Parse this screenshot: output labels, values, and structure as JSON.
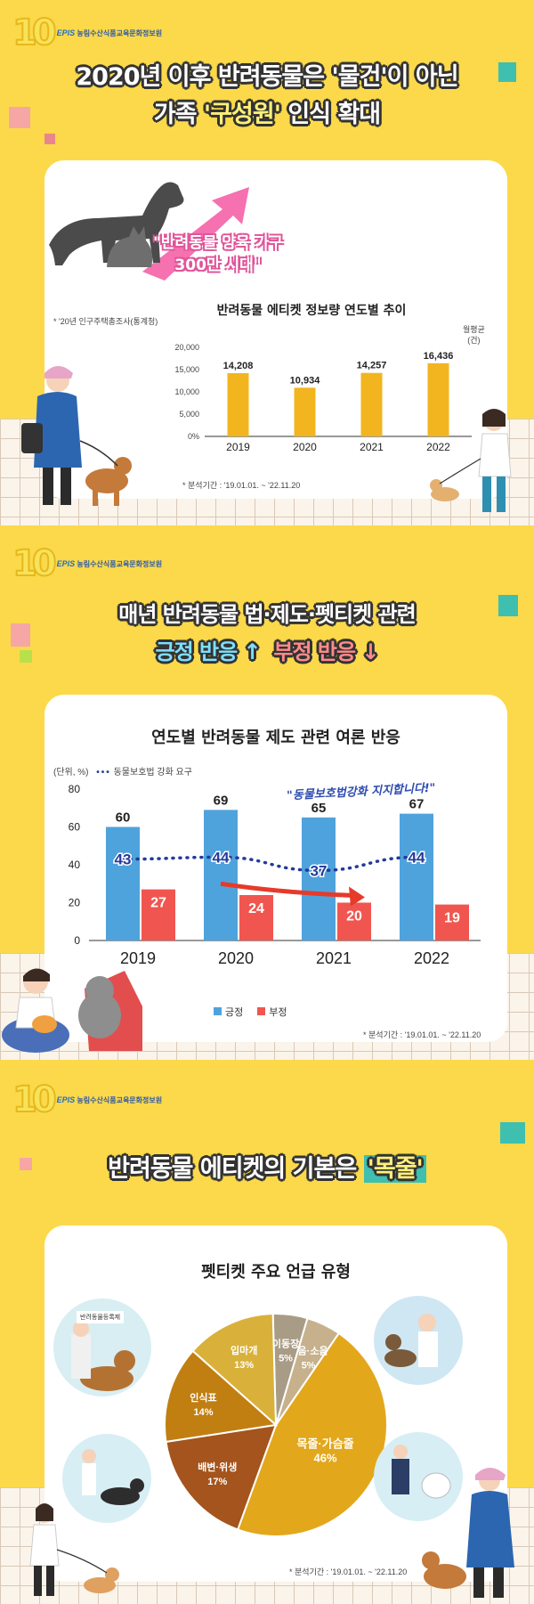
{
  "org": {
    "mark": "10",
    "brand": "EPIS",
    "name": "농림수산식품교육문화정보원"
  },
  "section1": {
    "headline_line1": "2020년 이후 반려동물은 '물건'이 아닌",
    "headline_line2_a": "가족 ",
    "headline_line2_b": "'구성원'",
    "headline_line2_c": " 인식 확대",
    "callout_line1": "\"반려동물 양육 가구",
    "callout_line2": "300만 시대\"",
    "source_note": "* '20년 인구주택총조사(통계청)",
    "chart_title": "반려동물 에티켓 정보량 연도별 추이",
    "unit_label_1": "월평균",
    "unit_label_2": "(건)",
    "period_note": "* 분석기간 : '19.01.01. ~ '22.11.20"
  },
  "section2": {
    "headline_line1": "매년 반려동물 법·제도·펫티켓 관련",
    "headline_pos": "긍정 반응 ↑",
    "headline_neg": "부정 반응 ↓",
    "chart_title": "연도별 반려동물 제도 관련 여론 반응",
    "unit_label": "(단위, %)",
    "line_legend": "동물보호법 강화 요구",
    "callout": "\"동물보호법강화 지지합니다!\"",
    "legend_pos": "긍정",
    "legend_neg": "부정",
    "period_note": "* 분석기간 : '19.01.01. ~ '22.11.20"
  },
  "section3": {
    "headline_a": "반려동물 에티켓의 기본은 ",
    "headline_b": "'목줄'",
    "chart_title": "펫티켓 주요 언급 유형",
    "sign_text": "반려동물등록제",
    "period_note": "* 분석기간 : '19.01.01. ~ '22.11.20"
  },
  "colors": {
    "background": "#fcd94a",
    "bar_gold": "#f2b51f",
    "positive": "#4fa3dc",
    "negative": "#f0564f",
    "line": "#233a9c",
    "pink_arrow": "#f571b0"
  },
  "chart_data": [
    {
      "type": "bar",
      "title": "반려동물 에티켓 정보량 연도별 추이",
      "categories": [
        "2019",
        "2020",
        "2021",
        "2022"
      ],
      "values": [
        14208,
        10934,
        14257,
        16436
      ],
      "data_labels": [
        "14,208",
        "10,934",
        "14,257",
        "16,436"
      ],
      "yticks": [
        "0%",
        "5,000",
        "10,000",
        "15,000",
        "20,000"
      ],
      "ylabel": "월평균 (건)",
      "ylim": [
        0,
        20000
      ],
      "grid": false
    },
    {
      "type": "bar",
      "title": "연도별 반려동물 제도 관련 여론 반응",
      "categories": [
        "2019",
        "2020",
        "2021",
        "2022"
      ],
      "yticks": [
        "0",
        "20",
        "40",
        "60",
        "80"
      ],
      "ylim": [
        0,
        80
      ],
      "ylabel": "(단위, %)",
      "series": [
        {
          "name": "긍정",
          "type": "bar",
          "values": [
            60,
            69,
            65,
            67
          ]
        },
        {
          "name": "부정",
          "type": "bar",
          "values": [
            27,
            24,
            20,
            19
          ]
        },
        {
          "name": "동물보호법 강화 요구",
          "type": "line",
          "style": "dotted",
          "values": [
            43,
            44,
            37,
            44
          ]
        }
      ],
      "legend": "bottom"
    },
    {
      "type": "pie",
      "title": "펫티켓 주요 언급 유형",
      "slices": [
        {
          "label": "목줄·가슴줄",
          "value": 46,
          "text": "46%",
          "color": "#e3a71c"
        },
        {
          "label": "짖음·소음",
          "value": 5,
          "text": "5%",
          "color": "#c6b18c"
        },
        {
          "label": "이동장",
          "value": 5,
          "text": "5%",
          "color": "#a99c86"
        },
        {
          "label": "입마개",
          "value": 13,
          "text": "13%",
          "color": "#d9b13a"
        },
        {
          "label": "인식표",
          "value": 14,
          "text": "14%",
          "color": "#c17f12"
        },
        {
          "label": "배변·위생",
          "value": 17,
          "text": "17%",
          "color": "#a4541c"
        }
      ]
    }
  ]
}
